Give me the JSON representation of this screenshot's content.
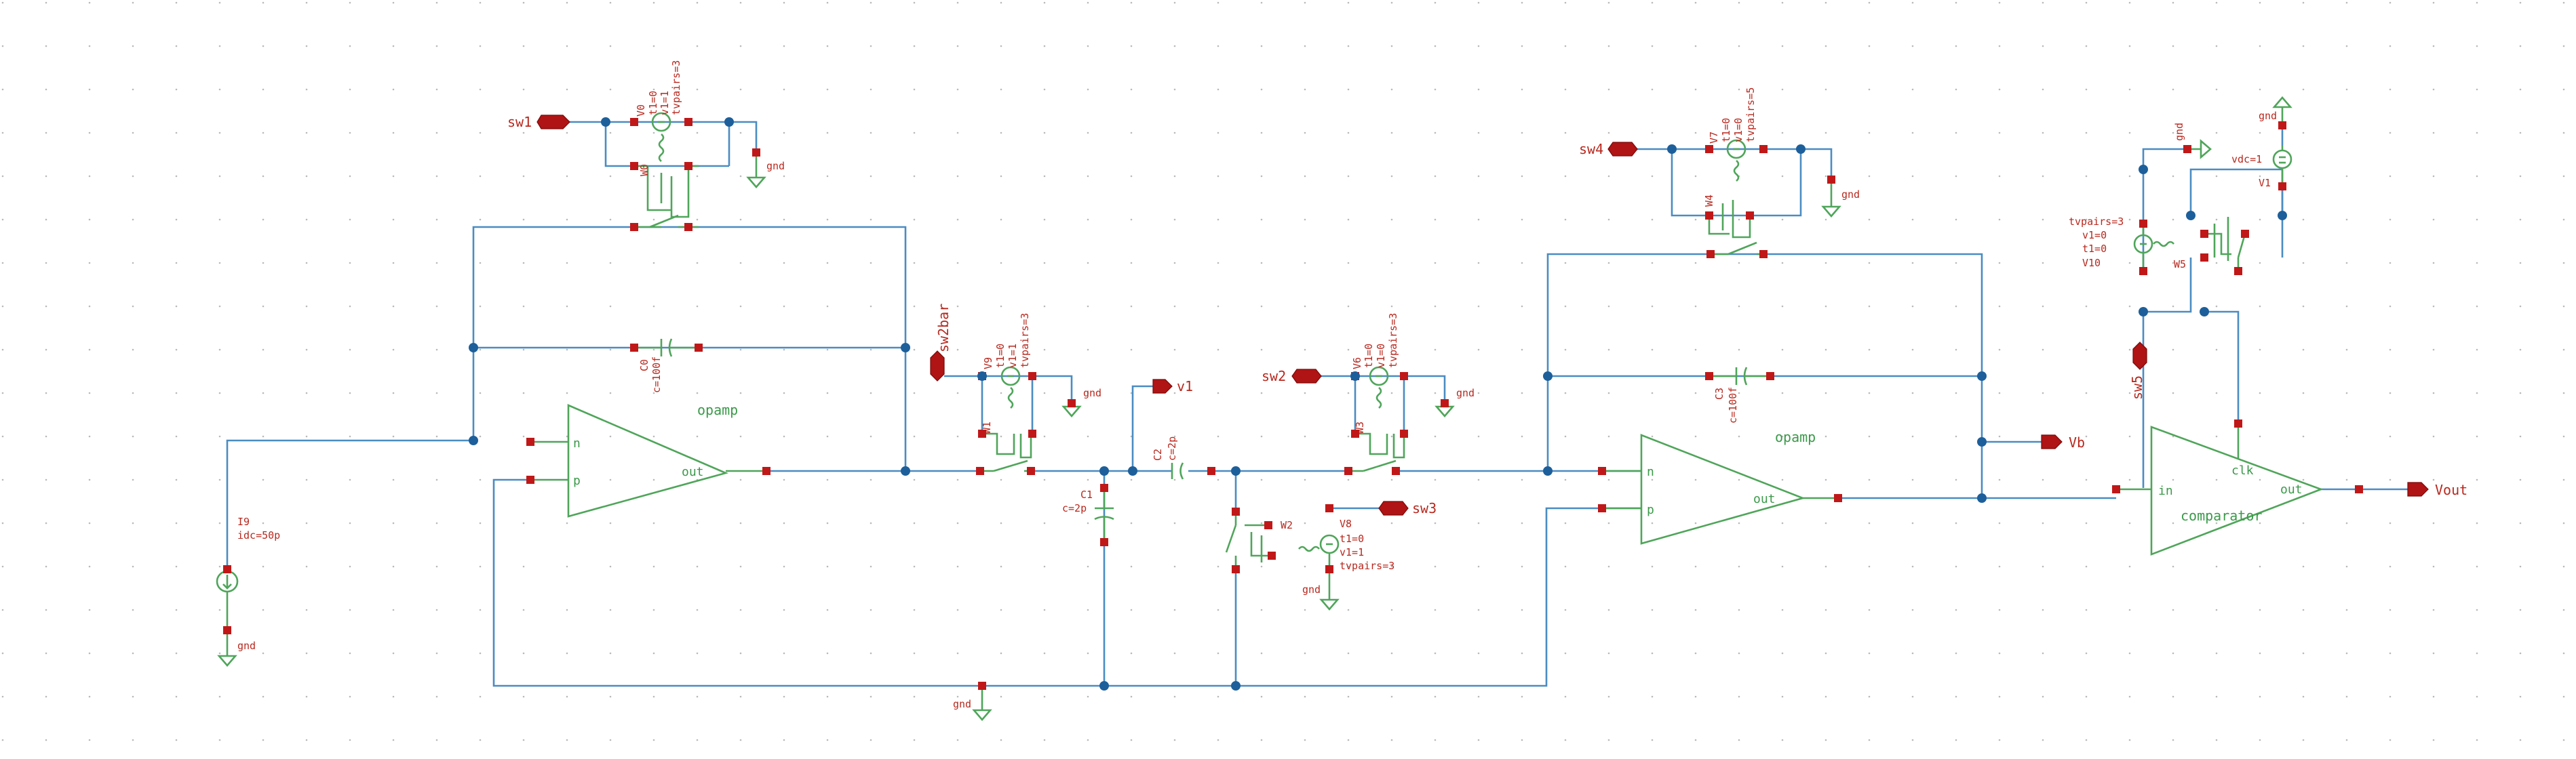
{
  "nets": {
    "sw1": "sw1",
    "sw2bar": "sw2bar",
    "v1": "v1",
    "sw2": "sw2",
    "sw3": "sw3",
    "sw4": "sw4",
    "vb": "Vb",
    "sw5": "sw5",
    "vout": "Vout",
    "gnd": "gnd"
  },
  "pins": {
    "n": "n",
    "p": "p",
    "out": "out",
    "in": "in",
    "clk": "clk"
  },
  "cells": {
    "opamp": "opamp",
    "comparator": "comparator"
  },
  "components": {
    "v0": {
      "name": "V0",
      "p1": "t1=0",
      "p2": "v1=1",
      "p3": "tvpairs=3"
    },
    "w0": {
      "name": "W0"
    },
    "c0": {
      "name": "C0",
      "value": "c=100f"
    },
    "i9": {
      "name": "I9",
      "value": "idc=50p"
    },
    "v9": {
      "name": "V9",
      "p1": "t1=0",
      "p2": "v1=1",
      "p3": "tvpairs=3"
    },
    "w1": {
      "name": "W1"
    },
    "c1": {
      "name": "C1",
      "value": "c=2p"
    },
    "c2": {
      "name": "C2",
      "value": "c=2p"
    },
    "v6": {
      "name": "V6",
      "p1": "t1=0",
      "p2": "v1=0",
      "p3": "tvpairs=3"
    },
    "w3": {
      "name": "W3"
    },
    "w2": {
      "name": "W2"
    },
    "v8": {
      "name": "V8",
      "p1": "t1=0",
      "p2": "v1=1",
      "p3": "tvpairs=3"
    },
    "v7": {
      "name": "V7",
      "p1": "t1=0",
      "p2": "v1=0",
      "p3": "tvpairs=5"
    },
    "w4": {
      "name": "W4"
    },
    "c3": {
      "name": "C3",
      "value": "c=100f"
    },
    "v10": {
      "name": "V10",
      "p1": "tvpairs=3",
      "p2": "v1=0",
      "p3": "t1=0"
    },
    "w5": {
      "name": "W5"
    },
    "v1src": {
      "name": "V1",
      "value": "vdc=1"
    }
  },
  "colors": {
    "wire": "#4a8cc2",
    "device": "#4fa55a",
    "label": "#b8281e",
    "pin": "#c01818",
    "junction": "#1d5f9a"
  }
}
